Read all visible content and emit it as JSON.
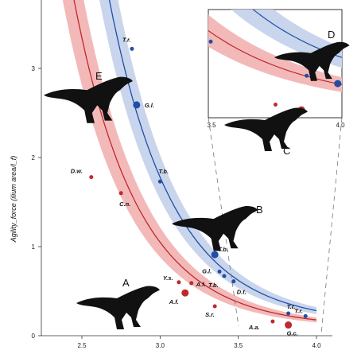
{
  "chart_data": {
    "type": "scatter",
    "ylabel": "Agility_force (ilium area/l_f)",
    "xlabel": "",
    "xlim": [
      2.2,
      4.2
    ],
    "ylim": [
      0,
      3.7
    ],
    "x_ticks": [
      "2.5",
      "3.0",
      "3.5",
      "4.0"
    ],
    "y_ticks": [
      "0",
      "1",
      "2",
      "3"
    ],
    "colors": {
      "red": "#c0282d",
      "blue": "#1f4fa6",
      "red_band": "#f3b9b9",
      "blue_band": "#c9d5ec"
    },
    "series": [
      {
        "color": "red",
        "points": [
          {
            "x": 2.56,
            "y": 1.78,
            "label": "D.w.",
            "size": "small"
          },
          {
            "x": 2.75,
            "y": 1.6,
            "label": "C.n.",
            "size": "small"
          },
          {
            "x": 3.12,
            "y": 0.6,
            "label": "Y.s.",
            "size": "small"
          },
          {
            "x": 3.16,
            "y": 0.48,
            "label": "A.f.",
            "size": "large"
          },
          {
            "x": 3.2,
            "y": 0.59,
            "label": "A.f.",
            "size": "small"
          },
          {
            "x": 3.35,
            "y": 0.33,
            "label": "S.r.",
            "size": "small"
          },
          {
            "x": 3.72,
            "y": 0.16,
            "label": "A.a.",
            "size": "small"
          },
          {
            "x": 3.82,
            "y": 0.12,
            "label": "G.c.",
            "size": "large"
          }
        ]
      },
      {
        "color": "blue",
        "points": [
          {
            "x": 2.82,
            "y": 3.22,
            "label": "T.r.",
            "size": "small"
          },
          {
            "x": 2.85,
            "y": 2.59,
            "label": "G.l.",
            "size": "large"
          },
          {
            "x": 3.0,
            "y": 1.73,
            "label": "T.b.",
            "size": "small"
          },
          {
            "x": 3.35,
            "y": 0.91,
            "label": "T.b.",
            "size": "large"
          },
          {
            "x": 3.38,
            "y": 0.72,
            "label": "G.l.",
            "size": "small"
          },
          {
            "x": 3.41,
            "y": 0.67,
            "label": "T.b.",
            "size": "small"
          },
          {
            "x": 3.47,
            "y": 0.61,
            "label": "D.t.",
            "size": "small"
          },
          {
            "x": 3.82,
            "y": 0.25,
            "label": "T.r.",
            "size": "small"
          },
          {
            "x": 3.93,
            "y": 0.22,
            "label": "T.r.",
            "size": "small"
          }
        ]
      }
    ],
    "inset": {
      "x_ticks": [
        "3.5",
        "4.0"
      ],
      "letters": [
        "D",
        "C"
      ]
    },
    "silhouette_letters": [
      "E",
      "B",
      "A"
    ]
  }
}
